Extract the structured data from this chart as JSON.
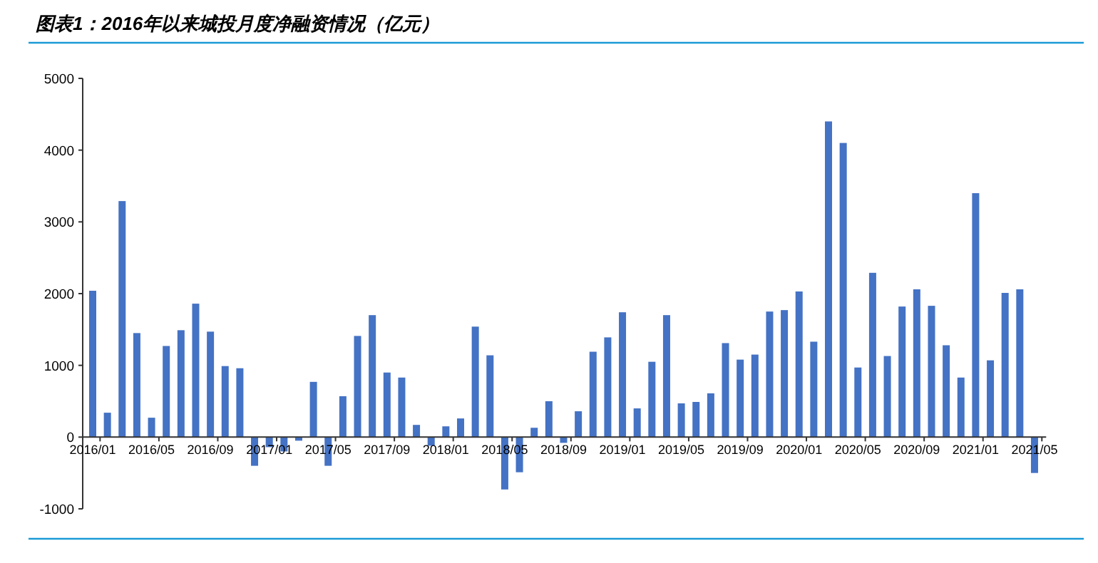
{
  "chart_data": {
    "type": "bar",
    "title": "图表1：2016年以来城投月度净融资情况（亿元）",
    "categories": [
      "2016/01",
      null,
      null,
      null,
      "2016/05",
      null,
      null,
      null,
      "2016/09",
      null,
      null,
      null,
      "2017/01",
      null,
      null,
      null,
      "2017/05",
      null,
      null,
      null,
      "2017/09",
      null,
      null,
      null,
      "2018/01",
      null,
      null,
      null,
      "2018/05",
      null,
      null,
      null,
      "2018/09",
      null,
      null,
      null,
      "2019/01",
      null,
      null,
      null,
      "2019/05",
      null,
      null,
      null,
      "2019/09",
      null,
      null,
      null,
      "2020/01",
      null,
      null,
      null,
      "2020/05",
      null,
      null,
      null,
      "2020/09",
      null,
      null,
      null,
      "2021/01",
      null,
      null,
      null,
      "2021/05"
    ],
    "values": [
      2040,
      340,
      3290,
      1450,
      270,
      1270,
      1490,
      1860,
      1470,
      990,
      960,
      -400,
      -140,
      -200,
      -50,
      770,
      -400,
      570,
      1410,
      1700,
      900,
      830,
      170,
      -120,
      150,
      260,
      1540,
      1140,
      -730,
      -490,
      130,
      500,
      -80,
      360,
      1190,
      1390,
      1740,
      400,
      1050,
      1700,
      470,
      490,
      610,
      1310,
      1080,
      1150,
      1750,
      1770,
      2030,
      1330,
      4400,
      4100,
      970,
      2290,
      1130,
      1820,
      2060,
      1830,
      1280,
      830,
      3400,
      1070,
      2010,
      2060,
      -500
    ],
    "color": "#4472c4",
    "ylim": [
      -1000,
      5000
    ],
    "yticks": [
      -1000,
      0,
      1000,
      2000,
      3000,
      4000,
      5000
    ]
  }
}
